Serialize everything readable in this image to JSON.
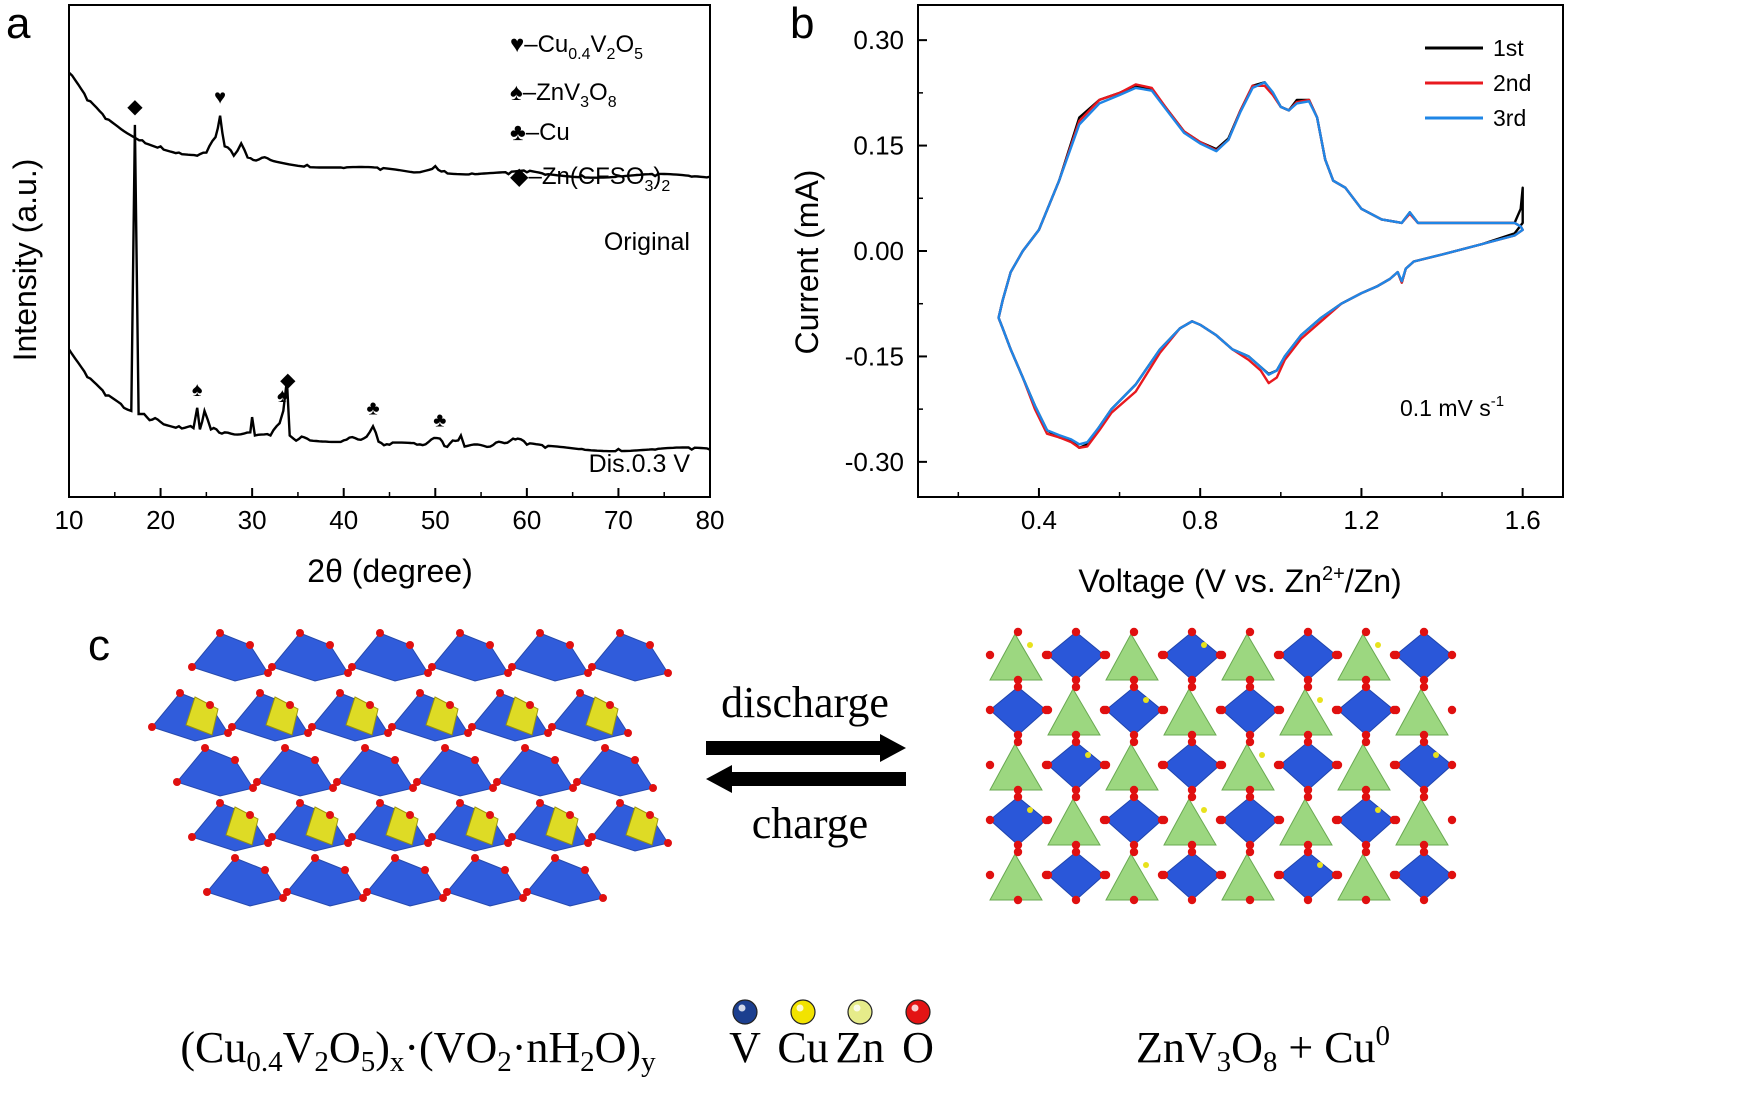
{
  "panel_labels": {
    "a": "a",
    "b": "b",
    "c": "c"
  },
  "chart_data": [
    {
      "type": "line",
      "title": "",
      "xlabel": "2θ (degree)",
      "ylabel": "Intensity (a.u.)",
      "xlim": [
        10,
        80
      ],
      "xticks": [
        "10",
        "20",
        "30",
        "40",
        "50",
        "60",
        "70",
        "80"
      ],
      "yticks": [],
      "series": [
        {
          "name": "Original",
          "label": "Original",
          "x": [
            10,
            12,
            14,
            16,
            18,
            20,
            22,
            24,
            25,
            26,
            26.5,
            27,
            28,
            28.8,
            29.5,
            32,
            36,
            40,
            44,
            48,
            50,
            51,
            54,
            58,
            60,
            62,
            66,
            70,
            74,
            78,
            80
          ],
          "y": [
            3.9,
            3.45,
            3.15,
            2.95,
            2.8,
            2.7,
            2.6,
            2.55,
            2.6,
            2.85,
            3.2,
            2.7,
            2.55,
            2.75,
            2.52,
            2.48,
            2.4,
            2.35,
            2.32,
            2.28,
            2.38,
            2.3,
            2.26,
            2.25,
            2.28,
            2.24,
            2.23,
            2.22,
            2.22,
            2.21,
            2.21
          ]
        },
        {
          "name": "Dis.0.3 V",
          "label": "Dis.0.3 V",
          "x": [
            10,
            12,
            14,
            16,
            16.8,
            17.2,
            17.6,
            18.5,
            20,
            22,
            23.6,
            24,
            24.3,
            24.8,
            25.5,
            27,
            29.8,
            30,
            30.3,
            32,
            33,
            33.4,
            33.8,
            34.1,
            34.5,
            36,
            40,
            42.5,
            43.2,
            43.8,
            45,
            48,
            50.5,
            51,
            52.5,
            52.8,
            53.2,
            56,
            58.5,
            59,
            60,
            62,
            66,
            70,
            74,
            78,
            80
          ],
          "y": [
            -0.6,
            -1.05,
            -1.35,
            -1.55,
            -1.6,
            3.05,
            -1.65,
            -1.7,
            -1.78,
            -1.85,
            -1.88,
            -1.55,
            -1.9,
            -1.6,
            -1.9,
            -1.95,
            -1.95,
            -1.7,
            -2.0,
            -2.0,
            -1.8,
            -1.6,
            -1.1,
            -2.0,
            -2.05,
            -2.05,
            -2.08,
            -2.02,
            -1.85,
            -2.1,
            -2.15,
            -2.15,
            -2.05,
            -2.17,
            -2.08,
            -2.0,
            -2.18,
            -2.18,
            -2.05,
            -2.05,
            -2.15,
            -2.2,
            -2.22,
            -2.22,
            -2.23,
            -2.23,
            -2.23
          ]
        }
      ],
      "legend": [
        {
          "symbol": "♥",
          "text": "–Cu",
          "sub": "0.4",
          "text2": "V",
          "sub2": "2",
          "text3": "O",
          "sub3": "5"
        },
        {
          "symbol": "♠",
          "text": "–ZnV",
          "sub": "3",
          "text2": "O",
          "sub2": "8",
          "text3": "",
          "sub3": ""
        },
        {
          "symbol": "♣",
          "text": "–Cu",
          "sub": "",
          "text2": "",
          "sub2": "",
          "text3": "",
          "sub3": ""
        },
        {
          "symbol": "◆",
          "text": "–Zn(CFSO",
          "sub": "3",
          "text2": ")",
          "sub2": "2",
          "text3": "",
          "sub3": ""
        }
      ],
      "annotations": [
        {
          "symbol": "♥",
          "x": 26.5,
          "series": "Original"
        },
        {
          "symbol": "◆",
          "x": 17.2,
          "series": "Dis.0.3 V"
        },
        {
          "symbol": "♠",
          "x": 24.0,
          "series": "Dis.0.3 V"
        },
        {
          "symbol": "♠",
          "x": 33.3,
          "series": "Dis.0.3 V"
        },
        {
          "symbol": "◆",
          "x": 33.9,
          "series": "Dis.0.3 V"
        },
        {
          "symbol": "♣",
          "x": 43.2,
          "series": "Dis.0.3 V"
        },
        {
          "symbol": "♣",
          "x": 50.5,
          "series": "Dis.0.3 V"
        }
      ],
      "ylim": [
        -3.0,
        5.0
      ]
    },
    {
      "type": "line",
      "title": "",
      "xlabel": "Voltage (V vs. Zn",
      "xlabel_sup": "2+",
      "xlabel_end": "/Zn)",
      "ylabel": "Current (mA)",
      "xlim": [
        0.1,
        1.7
      ],
      "ylim": [
        -0.35,
        0.35
      ],
      "xticks": [
        "0.4",
        "0.8",
        "1.2",
        "1.6"
      ],
      "yticks": [
        "0.30",
        "0.15",
        "0.00",
        "-0.15",
        "-0.30"
      ],
      "annotation": "0.1 mV s",
      "annotation_sup": "-1",
      "series": [
        {
          "name": "1st",
          "color": "#000000",
          "x": [
            0.3,
            0.31,
            0.33,
            0.36,
            0.4,
            0.45,
            0.5,
            0.55,
            0.6,
            0.64,
            0.68,
            0.72,
            0.76,
            0.8,
            0.84,
            0.87,
            0.9,
            0.93,
            0.96,
            0.98,
            1.0,
            1.02,
            1.04,
            1.07,
            1.09,
            1.11,
            1.13,
            1.16,
            1.2,
            1.25,
            1.3,
            1.32,
            1.34,
            1.4,
            1.5,
            1.58,
            1.595,
            1.6,
            1.6,
            1.58,
            1.5,
            1.4,
            1.33,
            1.31,
            1.3,
            1.29,
            1.27,
            1.24,
            1.2,
            1.15,
            1.1,
            1.05,
            1.01,
            0.99,
            0.97,
            0.95,
            0.92,
            0.88,
            0.84,
            0.8,
            0.78,
            0.75,
            0.7,
            0.64,
            0.58,
            0.55,
            0.52,
            0.5,
            0.48,
            0.45,
            0.42,
            0.39,
            0.36,
            0.33,
            0.31,
            0.3
          ],
          "y": [
            -0.095,
            -0.07,
            -0.03,
            0.0,
            0.03,
            0.1,
            0.19,
            0.215,
            0.225,
            0.235,
            0.23,
            0.2,
            0.17,
            0.155,
            0.145,
            0.16,
            0.2,
            0.235,
            0.24,
            0.225,
            0.205,
            0.2,
            0.215,
            0.215,
            0.19,
            0.13,
            0.1,
            0.09,
            0.06,
            0.045,
            0.04,
            0.055,
            0.04,
            0.04,
            0.04,
            0.04,
            0.06,
            0.09,
            0.04,
            0.025,
            0.01,
            -0.005,
            -0.015,
            -0.025,
            -0.045,
            -0.03,
            -0.04,
            -0.05,
            -0.06,
            -0.075,
            -0.095,
            -0.12,
            -0.15,
            -0.17,
            -0.175,
            -0.165,
            -0.15,
            -0.14,
            -0.12,
            -0.105,
            -0.1,
            -0.11,
            -0.14,
            -0.19,
            -0.225,
            -0.25,
            -0.275,
            -0.28,
            -0.27,
            -0.265,
            -0.255,
            -0.22,
            -0.18,
            -0.14,
            -0.11,
            -0.095
          ]
        },
        {
          "name": "2nd",
          "color": "#e8191f",
          "x": [
            0.3,
            0.31,
            0.33,
            0.36,
            0.4,
            0.45,
            0.5,
            0.55,
            0.6,
            0.64,
            0.68,
            0.72,
            0.76,
            0.8,
            0.84,
            0.87,
            0.9,
            0.93,
            0.96,
            0.98,
            1.0,
            1.02,
            1.04,
            1.07,
            1.09,
            1.11,
            1.13,
            1.16,
            1.2,
            1.25,
            1.3,
            1.32,
            1.34,
            1.4,
            1.5,
            1.58,
            1.595,
            1.6,
            1.6,
            1.58,
            1.5,
            1.4,
            1.33,
            1.31,
            1.3,
            1.29,
            1.27,
            1.24,
            1.2,
            1.15,
            1.1,
            1.05,
            1.01,
            0.99,
            0.97,
            0.95,
            0.92,
            0.88,
            0.84,
            0.8,
            0.78,
            0.75,
            0.7,
            0.64,
            0.58,
            0.55,
            0.52,
            0.5,
            0.48,
            0.45,
            0.42,
            0.39,
            0.36,
            0.33,
            0.31,
            0.3
          ],
          "y": [
            -0.095,
            -0.07,
            -0.03,
            0.0,
            0.03,
            0.1,
            0.185,
            0.215,
            0.225,
            0.237,
            0.232,
            0.2,
            0.17,
            0.155,
            0.143,
            0.158,
            0.2,
            0.235,
            0.235,
            0.222,
            0.205,
            0.2,
            0.212,
            0.215,
            0.19,
            0.13,
            0.1,
            0.09,
            0.06,
            0.045,
            0.04,
            0.053,
            0.04,
            0.04,
            0.04,
            0.04,
            0.035,
            0.03,
            0.03,
            0.022,
            0.01,
            -0.005,
            -0.015,
            -0.025,
            -0.045,
            -0.03,
            -0.04,
            -0.05,
            -0.06,
            -0.075,
            -0.1,
            -0.125,
            -0.155,
            -0.18,
            -0.188,
            -0.17,
            -0.155,
            -0.14,
            -0.12,
            -0.105,
            -0.1,
            -0.11,
            -0.145,
            -0.2,
            -0.23,
            -0.255,
            -0.278,
            -0.28,
            -0.272,
            -0.265,
            -0.26,
            -0.225,
            -0.18,
            -0.14,
            -0.11,
            -0.095
          ]
        },
        {
          "name": "3rd",
          "color": "#1f86e6",
          "x": [
            0.3,
            0.31,
            0.33,
            0.36,
            0.4,
            0.45,
            0.5,
            0.55,
            0.6,
            0.64,
            0.68,
            0.72,
            0.76,
            0.8,
            0.84,
            0.87,
            0.9,
            0.93,
            0.96,
            0.98,
            1.0,
            1.02,
            1.04,
            1.07,
            1.09,
            1.11,
            1.13,
            1.16,
            1.2,
            1.25,
            1.3,
            1.32,
            1.34,
            1.4,
            1.5,
            1.58,
            1.595,
            1.6,
            1.6,
            1.58,
            1.5,
            1.4,
            1.33,
            1.31,
            1.3,
            1.29,
            1.27,
            1.24,
            1.2,
            1.15,
            1.1,
            1.05,
            1.01,
            0.99,
            0.97,
            0.95,
            0.92,
            0.88,
            0.84,
            0.8,
            0.78,
            0.75,
            0.7,
            0.64,
            0.58,
            0.55,
            0.52,
            0.5,
            0.48,
            0.45,
            0.42,
            0.39,
            0.36,
            0.33,
            0.31,
            0.3
          ],
          "y": [
            -0.095,
            -0.07,
            -0.03,
            0.0,
            0.03,
            0.1,
            0.18,
            0.21,
            0.222,
            0.232,
            0.228,
            0.198,
            0.168,
            0.153,
            0.142,
            0.158,
            0.198,
            0.232,
            0.24,
            0.226,
            0.205,
            0.2,
            0.21,
            0.213,
            0.19,
            0.13,
            0.1,
            0.09,
            0.06,
            0.045,
            0.04,
            0.055,
            0.04,
            0.04,
            0.04,
            0.04,
            0.035,
            0.03,
            0.03,
            0.022,
            0.01,
            -0.005,
            -0.015,
            -0.025,
            -0.043,
            -0.03,
            -0.04,
            -0.05,
            -0.06,
            -0.075,
            -0.095,
            -0.12,
            -0.15,
            -0.17,
            -0.176,
            -0.165,
            -0.15,
            -0.14,
            -0.12,
            -0.105,
            -0.1,
            -0.11,
            -0.14,
            -0.19,
            -0.225,
            -0.25,
            -0.272,
            -0.275,
            -0.268,
            -0.262,
            -0.255,
            -0.22,
            -0.18,
            -0.14,
            -0.11,
            -0.095
          ]
        }
      ]
    }
  ],
  "panel_c": {
    "left_formula": {
      "p1": "(Cu",
      "s1": "0.4",
      "p2": "V",
      "s2": "2",
      "p3": "O",
      "s3": "5",
      "p4": ")",
      "s4": "x",
      "p5": "·(VO",
      "s5": "2",
      "p6": "·nH",
      "s6": "2",
      "p7": "O)",
      "s7": "y"
    },
    "right_formula": {
      "p1": "ZnV",
      "s1": "3",
      "p2": "O",
      "s2": "8",
      "p3": " + Cu",
      "sup3": "0"
    },
    "arrow_top": "discharge",
    "arrow_bottom": "charge",
    "atom_legend": [
      {
        "label": "V",
        "color": "#1c3f8f"
      },
      {
        "label": "Cu",
        "color": "#f2e300"
      },
      {
        "label": "Zn",
        "color": "#e6ec8a"
      },
      {
        "label": "O",
        "color": "#e31414"
      }
    ],
    "colors": {
      "vanadium_polyhedra": "#1f4fd8",
      "copper_polyhedra": "#e8e21c",
      "zinc_polyhedra": "#8bd16a",
      "oxygen": "#e01010"
    }
  }
}
